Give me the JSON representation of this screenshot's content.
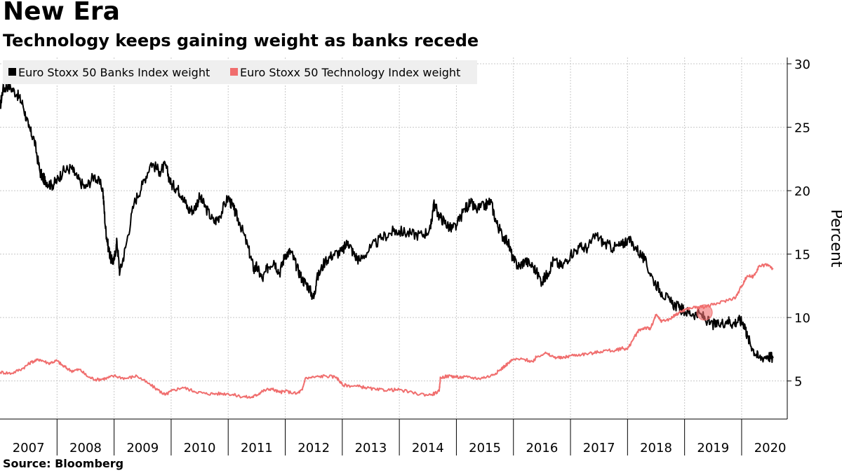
{
  "header": {
    "title": "New Era",
    "subtitle": "Technology keeps gaining weight as banks recede"
  },
  "footer": {
    "source": "Source: Bloomberg"
  },
  "chart_data": {
    "type": "line",
    "title": "New Era",
    "subtitle": "Technology keeps gaining weight as banks recede",
    "ylabel": "Percent",
    "xlabel": "",
    "ylim": [
      2,
      30.5
    ],
    "xlim": [
      2007.0,
      2020.8
    ],
    "y_ticks": [
      5,
      10,
      15,
      20,
      25,
      30
    ],
    "x_ticks": [
      "2007",
      "2008",
      "2009",
      "2010",
      "2011",
      "2012",
      "2013",
      "2014",
      "2015",
      "2016",
      "2017",
      "2018",
      "2019",
      "2020"
    ],
    "grid": true,
    "legend_position": "top-left",
    "series": [
      {
        "name": "Euro Stoxx 50 Banks Index weight",
        "color": "#000000",
        "x": [
          2007.0,
          2007.05,
          2007.15,
          2007.3,
          2007.4,
          2007.5,
          2007.6,
          2007.7,
          2007.75,
          2007.8,
          2007.9,
          2008.0,
          2008.1,
          2008.25,
          2008.35,
          2008.5,
          2008.65,
          2008.8,
          2008.85,
          2008.9,
          2008.95,
          2009.0,
          2009.05,
          2009.1,
          2009.2,
          2009.35,
          2009.5,
          2009.65,
          2009.8,
          2009.9,
          2010.0,
          2010.1,
          2010.2,
          2010.3,
          2010.4,
          2010.5,
          2010.6,
          2010.75,
          2010.85,
          2011.0,
          2011.1,
          2011.2,
          2011.35,
          2011.45,
          2011.5,
          2011.6,
          2011.7,
          2011.8,
          2011.9,
          2012.0,
          2012.1,
          2012.2,
          2012.3,
          2012.4,
          2012.5,
          2012.55,
          2012.7,
          2012.85,
          2013.0,
          2013.1,
          2013.2,
          2013.3,
          2013.5,
          2013.7,
          2013.9,
          2014.0,
          2014.2,
          2014.4,
          2014.55,
          2014.6,
          2014.7,
          2014.8,
          2014.9,
          2015.0,
          2015.15,
          2015.25,
          2015.35,
          2015.5,
          2015.6,
          2015.7,
          2015.8,
          2015.9,
          2016.0,
          2016.1,
          2016.2,
          2016.35,
          2016.5,
          2016.6,
          2016.7,
          2016.85,
          2017.0,
          2017.15,
          2017.3,
          2017.45,
          2017.6,
          2017.75,
          2017.9,
          2018.0,
          2018.15,
          2018.3,
          2018.45,
          2018.6,
          2018.75,
          2018.9,
          2019.0,
          2019.15,
          2019.3,
          2019.45,
          2019.6,
          2019.75,
          2019.85,
          2019.95,
          2020.05,
          2020.1,
          2020.2,
          2020.3,
          2020.45,
          2020.55
        ],
        "values": [
          26.5,
          28.0,
          28.3,
          27.6,
          26.8,
          25.0,
          24.0,
          21.5,
          21.0,
          20.8,
          20.4,
          20.8,
          21.5,
          21.8,
          21.0,
          20.2,
          21.2,
          20.2,
          17.0,
          15.5,
          14.5,
          14.5,
          16.0,
          13.5,
          15.5,
          19.0,
          20.5,
          22.2,
          21.5,
          22.0,
          20.5,
          20.2,
          19.6,
          18.5,
          18.5,
          19.5,
          18.7,
          17.5,
          18.0,
          19.5,
          18.5,
          17.5,
          15.5,
          13.8,
          14.0,
          13.0,
          14.0,
          14.5,
          13.5,
          15.0,
          15.2,
          14.0,
          13.0,
          12.5,
          11.5,
          13.0,
          14.5,
          15.0,
          15.2,
          16.0,
          15.0,
          14.5,
          15.5,
          16.3,
          16.8,
          16.8,
          16.6,
          16.5,
          17.0,
          19.0,
          18.0,
          17.5,
          17.0,
          17.2,
          18.6,
          19.0,
          18.5,
          18.8,
          19.2,
          17.5,
          16.5,
          16.0,
          14.5,
          14.0,
          14.5,
          14.0,
          12.8,
          13.5,
          14.5,
          14.0,
          15.0,
          15.5,
          15.5,
          16.5,
          15.8,
          15.5,
          15.7,
          16.2,
          15.5,
          14.5,
          13.0,
          12.0,
          11.2,
          10.8,
          10.5,
          10.3,
          10.2,
          9.5,
          9.4,
          9.8,
          9.5,
          9.8,
          9.5,
          8.5,
          7.5,
          6.8,
          7.0,
          6.8
        ]
      },
      {
        "name": "Euro Stoxx 50 Technology Index weight",
        "color": "#f06e6e",
        "x": [
          2007.0,
          2007.2,
          2007.4,
          2007.55,
          2007.7,
          2007.85,
          2008.0,
          2008.1,
          2008.25,
          2008.4,
          2008.55,
          2008.7,
          2008.85,
          2009.0,
          2009.2,
          2009.4,
          2009.6,
          2009.8,
          2009.9,
          2010.0,
          2010.2,
          2010.4,
          2010.6,
          2010.8,
          2011.0,
          2011.2,
          2011.4,
          2011.5,
          2011.6,
          2011.75,
          2011.9,
          2012.0,
          2012.2,
          2012.3,
          2012.35,
          2012.5,
          2012.7,
          2012.9,
          2013.0,
          2013.2,
          2013.4,
          2013.6,
          2013.8,
          2014.0,
          2014.3,
          2014.55,
          2014.7,
          2014.72,
          2014.9,
          2015.0,
          2015.2,
          2015.4,
          2015.6,
          2015.75,
          2015.85,
          2016.0,
          2016.2,
          2016.35,
          2016.4,
          2016.55,
          2016.7,
          2016.85,
          2017.0,
          2017.2,
          2017.4,
          2017.6,
          2017.8,
          2017.9,
          2018.0,
          2018.1,
          2018.2,
          2018.3,
          2018.4,
          2018.5,
          2018.6,
          2018.75,
          2018.9,
          2019.0,
          2019.15,
          2019.3,
          2019.5,
          2019.7,
          2019.9,
          2020.0,
          2020.1,
          2020.2,
          2020.3,
          2020.45,
          2020.55
        ],
        "values": [
          5.7,
          5.6,
          6.0,
          6.5,
          6.7,
          6.4,
          6.6,
          6.2,
          5.8,
          5.9,
          5.3,
          5.1,
          5.2,
          5.4,
          5.2,
          5.4,
          4.8,
          4.2,
          3.9,
          4.2,
          4.5,
          4.2,
          4.0,
          4.0,
          4.0,
          3.8,
          3.7,
          3.9,
          4.2,
          4.4,
          4.1,
          4.2,
          4.0,
          4.3,
          5.2,
          5.3,
          5.4,
          5.3,
          4.7,
          4.6,
          4.5,
          4.3,
          4.3,
          4.3,
          4.0,
          3.9,
          4.2,
          5.3,
          5.4,
          5.3,
          5.3,
          5.2,
          5.4,
          5.8,
          6.2,
          6.7,
          6.7,
          6.5,
          6.9,
          7.2,
          6.9,
          6.8,
          7.0,
          7.1,
          7.2,
          7.4,
          7.4,
          7.6,
          7.5,
          8.3,
          9.0,
          9.2,
          9.1,
          10.2,
          9.7,
          9.9,
          10.4,
          10.6,
          10.8,
          10.8,
          11.0,
          11.3,
          11.6,
          12.5,
          13.3,
          13.2,
          14.0,
          14.2,
          13.8
        ]
      }
    ],
    "highlight_marker": {
      "x": 2019.35,
      "y": 10.4,
      "color": "#f06e6e"
    }
  }
}
